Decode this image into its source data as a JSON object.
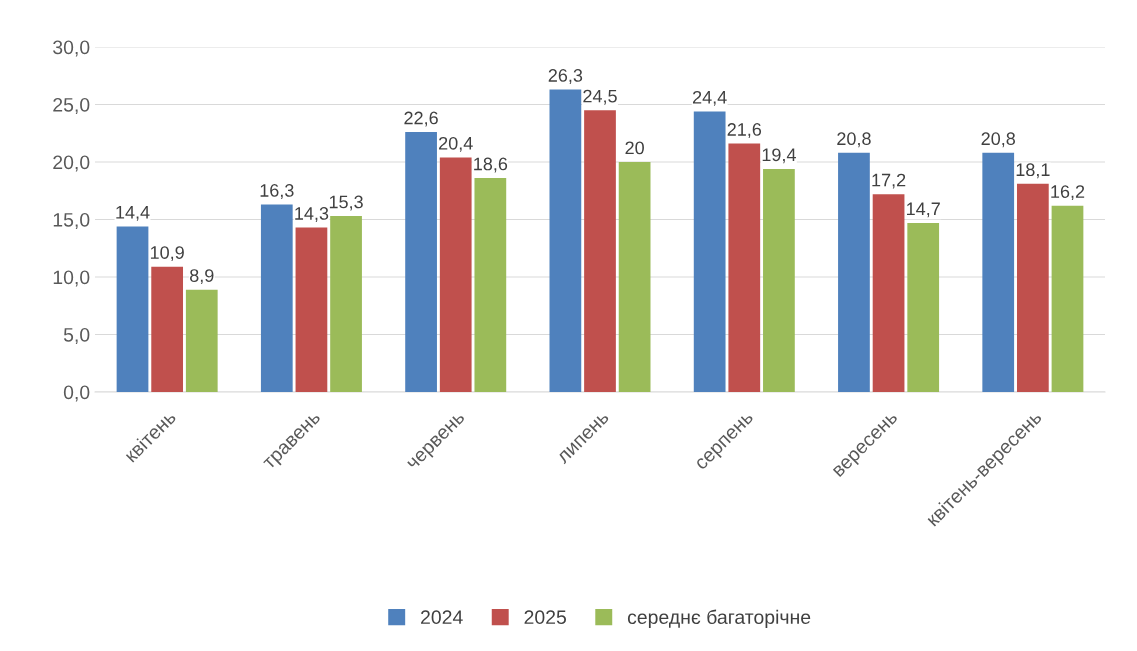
{
  "chart_data": {
    "type": "bar",
    "categories": [
      "квітень",
      "травень",
      "червень",
      "липень",
      "серпень",
      "вересень",
      "квітень-вересень"
    ],
    "series": [
      {
        "name": "2024",
        "color": "#4f81bd",
        "values": [
          14.4,
          16.3,
          22.6,
          26.3,
          24.4,
          20.8,
          20.8
        ],
        "value_labels": [
          "14,4",
          "16,3",
          "22,6",
          "26,3",
          "24,4",
          "20,8",
          "20,8"
        ]
      },
      {
        "name": "2025",
        "color": "#c0504d",
        "values": [
          10.9,
          14.3,
          20.4,
          24.5,
          21.6,
          17.2,
          18.1
        ],
        "value_labels": [
          "10,9",
          "14,3",
          "20,4",
          "24,5",
          "21,6",
          "17,2",
          "18,1"
        ]
      },
      {
        "name": "середнє багаторічне",
        "color": "#9bbb59",
        "values": [
          8.9,
          15.3,
          18.6,
          20,
          19.4,
          14.7,
          16.2
        ],
        "value_labels": [
          "8,9",
          "15,3",
          "18,6",
          "20",
          "19,4",
          "14,7",
          "16,2"
        ]
      }
    ],
    "ylim": [
      0,
      30
    ],
    "yticks": [
      {
        "value": 0,
        "label": "0,0"
      },
      {
        "value": 5,
        "label": "5,0"
      },
      {
        "value": 10,
        "label": "10,0"
      },
      {
        "value": 15,
        "label": "15,0"
      },
      {
        "value": 20,
        "label": "20,0"
      },
      {
        "value": 25,
        "label": "25,0"
      },
      {
        "value": 30,
        "label": "30,0"
      }
    ],
    "grid": "y",
    "legend": "bottom"
  }
}
